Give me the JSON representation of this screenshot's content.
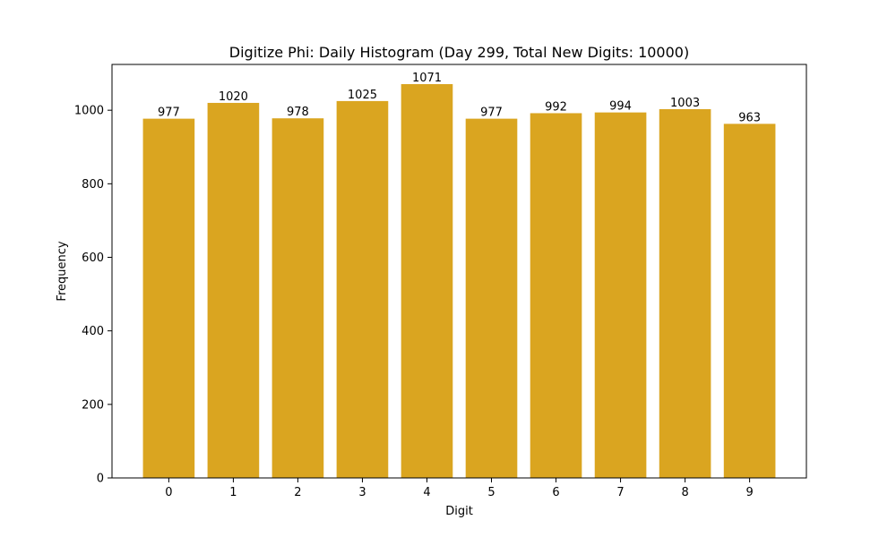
{
  "chart_data": {
    "type": "bar",
    "title": "Digitize Phi: Daily Histogram (Day 299, Total New Digits: 10000)",
    "xlabel": "Digit",
    "ylabel": "Frequency",
    "categories": [
      "0",
      "1",
      "2",
      "3",
      "4",
      "5",
      "6",
      "7",
      "8",
      "9"
    ],
    "values": [
      977,
      1020,
      978,
      1025,
      1071,
      977,
      992,
      994,
      1003,
      963
    ],
    "ylim": [
      0,
      1124.55
    ],
    "yticks": [
      0,
      200,
      400,
      600,
      800,
      1000
    ],
    "bar_color": "#DAA520",
    "grid": false,
    "legend": "none"
  }
}
